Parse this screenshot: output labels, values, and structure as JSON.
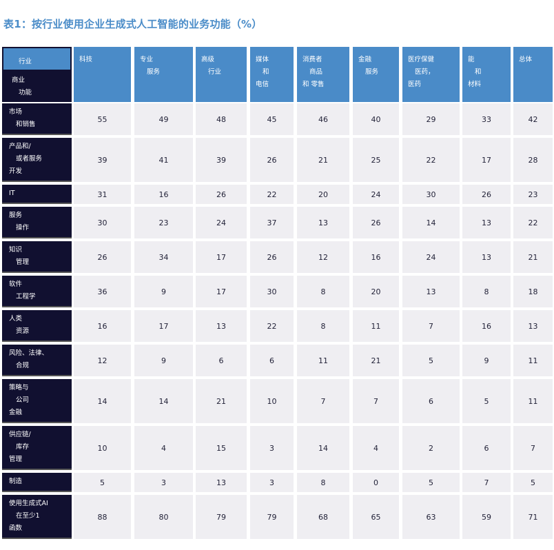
{
  "title": "表1：按行业使用企业生成式人工智能的业务功能（%）",
  "corner": {
    "top": "行业",
    "bottom": [
      "商业",
      "功能"
    ]
  },
  "columns": [
    [
      "科技"
    ],
    [
      "专业",
      "服务"
    ],
    [
      "高级",
      "行业"
    ],
    [
      "媒体",
      "和",
      "电信"
    ],
    [
      "消费者",
      "商品",
      "和 零售"
    ],
    [
      "金融",
      "服务"
    ],
    [
      "医疗保健",
      "医药，",
      "医药"
    ],
    [
      "能",
      "和",
      "材料"
    ],
    [
      "总体"
    ]
  ],
  "rows": [
    {
      "label": [
        "市场",
        "和销售"
      ],
      "values": [
        55,
        49,
        48,
        45,
        46,
        40,
        29,
        33,
        42
      ]
    },
    {
      "label": [
        "产品和/",
        "或者服务",
        "开发"
      ],
      "values": [
        39,
        41,
        39,
        26,
        21,
        25,
        22,
        17,
        28
      ]
    },
    {
      "label": [
        "IT"
      ],
      "values": [
        31,
        16,
        26,
        22,
        20,
        24,
        30,
        26,
        23
      ]
    },
    {
      "label": [
        "服务",
        "操作"
      ],
      "values": [
        30,
        23,
        24,
        37,
        13,
        26,
        14,
        13,
        22
      ]
    },
    {
      "label": [
        "知识",
        "管理"
      ],
      "values": [
        26,
        34,
        17,
        26,
        12,
        16,
        24,
        13,
        21
      ]
    },
    {
      "label": [
        "软件",
        "工程学"
      ],
      "values": [
        36,
        9,
        17,
        30,
        8,
        20,
        13,
        8,
        18
      ]
    },
    {
      "label": [
        "人类",
        "资源"
      ],
      "values": [
        16,
        17,
        13,
        22,
        8,
        11,
        7,
        16,
        13
      ]
    },
    {
      "label": [
        "风险、法律、",
        "合规"
      ],
      "values": [
        12,
        9,
        6,
        6,
        11,
        21,
        5,
        9,
        11
      ]
    },
    {
      "label": [
        "策略与",
        "公司",
        "金融"
      ],
      "values": [
        14,
        14,
        21,
        10,
        7,
        7,
        6,
        5,
        11
      ]
    },
    {
      "label": [
        "供应链/",
        "库存",
        "管理"
      ],
      "values": [
        10,
        4,
        15,
        3,
        14,
        4,
        2,
        6,
        7
      ]
    },
    {
      "label": [
        "制造"
      ],
      "values": [
        5,
        3,
        13,
        3,
        8,
        0,
        5,
        7,
        5
      ]
    },
    {
      "label": [
        "使用生成式AI",
        "在至少1",
        "函数"
      ],
      "values": [
        88,
        80,
        79,
        79,
        68,
        65,
        63,
        59,
        71
      ]
    }
  ],
  "colors": {
    "title": "#4a8cc8",
    "header_bg": "#4a8bc8",
    "row_label_bg": "#111030",
    "cell_bg": "#efeef2"
  }
}
